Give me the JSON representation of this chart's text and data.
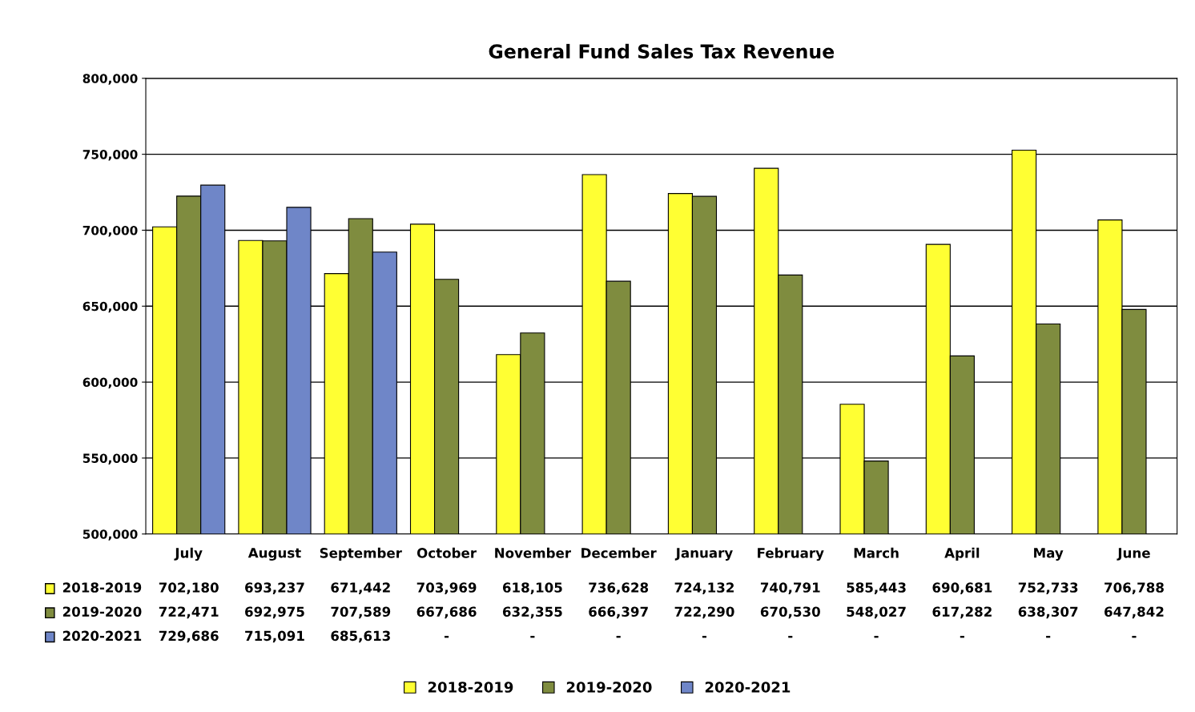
{
  "chart_data": {
    "type": "bar",
    "title": "General Fund Sales Tax Revenue",
    "categories": [
      "July",
      "August",
      "September",
      "October",
      "November",
      "December",
      "January",
      "February",
      "March",
      "April",
      "May",
      "June"
    ],
    "series": [
      {
        "name": "2018-2019",
        "color": "#ffff33",
        "values": [
          702180,
          693237,
          671442,
          703969,
          618105,
          736628,
          724132,
          740791,
          585443,
          690681,
          752733,
          706788
        ],
        "value_labels": [
          "702,180",
          "693,237",
          "671,442",
          "703,969",
          "618,105",
          "736,628",
          "724,132",
          "740,791",
          "585,443",
          "690,681",
          "752,733",
          "706,788"
        ]
      },
      {
        "name": "2019-2020",
        "color": "#7f8c3f",
        "values": [
          722471,
          692975,
          707589,
          667686,
          632355,
          666397,
          722290,
          670530,
          548027,
          617282,
          638307,
          647842
        ],
        "value_labels": [
          "722,471",
          "692,975",
          "707,589",
          "667,686",
          "632,355",
          "666,397",
          "722,290",
          "670,530",
          "548,027",
          "617,282",
          "638,307",
          "647,842"
        ]
      },
      {
        "name": "2020-2021",
        "color": "#6f86c8",
        "values": [
          729686,
          715091,
          685613,
          null,
          null,
          null,
          null,
          null,
          null,
          null,
          null,
          null
        ],
        "value_labels": [
          "729,686",
          "715,091",
          "685,613",
          "-",
          "-",
          "-",
          "-",
          "-",
          "-",
          "-",
          "-",
          "-"
        ]
      }
    ],
    "ylim": [
      500000,
      800000
    ],
    "yticks": [
      {
        "value": 500000,
        "label": "500,000"
      },
      {
        "value": 550000,
        "label": "550,000"
      },
      {
        "value": 600000,
        "label": "600,000"
      },
      {
        "value": 650000,
        "label": "650,000"
      },
      {
        "value": 700000,
        "label": "700,000"
      },
      {
        "value": 750000,
        "label": "750,000"
      },
      {
        "value": 800000,
        "label": "800,000"
      }
    ],
    "grid": "y",
    "legend": "bottom"
  }
}
